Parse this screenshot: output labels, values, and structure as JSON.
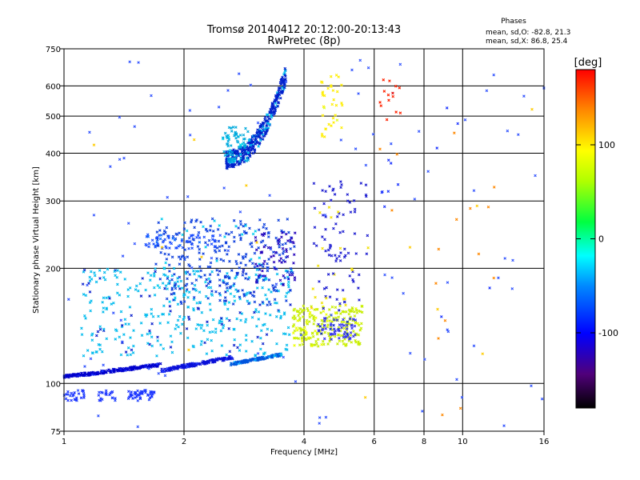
{
  "chart_data": {
    "type": "scatter",
    "title": "Tromsø 20140412 20:12:00-20:13:43",
    "subtitle": "RwPretec (8p)",
    "xlabel": "Frequency [MHz]",
    "ylabel": "Stationary phase Virtual Height [km]",
    "x_scale": "log",
    "y_scale": "log",
    "xlim": [
      1,
      16
    ],
    "ylim": [
      75,
      750
    ],
    "xticks": [
      1,
      2,
      4,
      6,
      8,
      10,
      16
    ],
    "xtick_labels": [
      "1",
      "2",
      "4",
      "6",
      "8",
      "10",
      "16"
    ],
    "yticks": [
      75,
      100,
      200,
      300,
      400,
      500,
      600,
      750
    ],
    "ytick_labels": [
      "75",
      "100",
      "200",
      "300",
      "400",
      "500",
      "600",
      "750"
    ],
    "grid": true,
    "phase_header": "Phases",
    "phase_stats": [
      {
        "label": "mean, sd,O:",
        "values": "-82.8, 21.3"
      },
      {
        "label": "mean, sd,X:",
        "values": "86.8, 25.4"
      }
    ],
    "colorbar": {
      "unit": "[deg]",
      "range": [
        -180,
        180
      ],
      "ticks": [
        100,
        0,
        -100
      ],
      "tick_labels": [
        "100",
        "0",
        "-100"
      ]
    },
    "clusters": [
      {
        "x": [
          1.0,
          1.75
        ],
        "y": [
          104,
          112
        ],
        "color": "#0000cc",
        "alt": "#1a33ff",
        "n": 230,
        "trend": "lin"
      },
      {
        "x": [
          1.75,
          2.65
        ],
        "y": [
          108,
          117
        ],
        "color": "#0a10d8",
        "alt": "#1a33ff",
        "n": 170,
        "trend": "lin"
      },
      {
        "x": [
          2.6,
          3.5
        ],
        "y": [
          112,
          119
        ],
        "color": "#0055dd",
        "alt": "#00aaff",
        "n": 130,
        "trend": "lin"
      },
      {
        "x": [
          1.1,
          3.7
        ],
        "y": [
          118,
          200
        ],
        "color": "#00bbee",
        "alt": "#0a20cc",
        "n": 380
      },
      {
        "x": [
          1.7,
          3.8
        ],
        "y": [
          160,
          270
        ],
        "color": "#0a3ddd",
        "alt": "#00ccee",
        "n": 300
      },
      {
        "x": [
          3.0,
          3.8
        ],
        "y": [
          180,
          250
        ],
        "color": "#2200bb",
        "alt": "#0000dd",
        "n": 60
      },
      {
        "x": [
          2.55,
          3.6
        ],
        "y": [
          385,
          640
        ],
        "color": "#0020cc",
        "alt": "#00bbee",
        "n": 360,
        "trend": "exp"
      },
      {
        "x": [
          2.5,
          2.9
        ],
        "y": [
          380,
          470
        ],
        "color": "#00aadd",
        "alt": "#00ddee",
        "n": 70
      },
      {
        "x": [
          3.75,
          5.6
        ],
        "y": [
          125,
          160
        ],
        "color": "#c8ee00",
        "alt": "#eeff00",
        "n": 220
      },
      {
        "x": [
          4.3,
          5.4
        ],
        "y": [
          130,
          148
        ],
        "color": "#3333ee",
        "alt": "#0022cc",
        "n": 60
      },
      {
        "x": [
          4.2,
          5.8
        ],
        "y": [
          155,
          340
        ],
        "color": "#1a1ad0",
        "alt": "#f0e000",
        "n": 100
      },
      {
        "x": [
          4.4,
          5.0
        ],
        "y": [
          440,
          640
        ],
        "color": "#ffee00",
        "alt": "#e0ff20",
        "n": 35
      },
      {
        "x": [
          1.45,
          1.7
        ],
        "y": [
          90,
          96
        ],
        "color": "#1a33ff",
        "alt": "#2244ff",
        "n": 45
      },
      {
        "x": [
          1.0,
          1.13
        ],
        "y": [
          90,
          96
        ],
        "color": "#1a33ff",
        "alt": "#2244ff",
        "n": 25
      },
      {
        "x": [
          1.2,
          1.35
        ],
        "y": [
          90,
          96
        ],
        "color": "#1a33ff",
        "alt": "#2244ff",
        "n": 20
      },
      {
        "x": [
          1.6,
          2.4
        ],
        "y": [
          225,
          245
        ],
        "color": "#1a4dff",
        "alt": "#0066ff",
        "n": 60
      },
      {
        "x": [
          6.2,
          7.0
        ],
        "y": [
          480,
          640
        ],
        "color": "#ff2200",
        "alt": "#dd0000",
        "n": 14
      },
      {
        "x": [
          6.2,
          7.0
        ],
        "y": [
          280,
          420
        ],
        "color": "#1a33ff",
        "alt": "#ff8800",
        "n": 10
      },
      {
        "x": [
          8.2,
          12.5
        ],
        "y": [
          80,
          560
        ],
        "color": "#ff8800",
        "alt": "#1a33ff",
        "n": 18
      },
      {
        "x": [
          1.0,
          16.0
        ],
        "y": [
          75,
          700
        ],
        "color": "#3355ff",
        "alt": "#ffcc00",
        "n": 110
      }
    ]
  }
}
